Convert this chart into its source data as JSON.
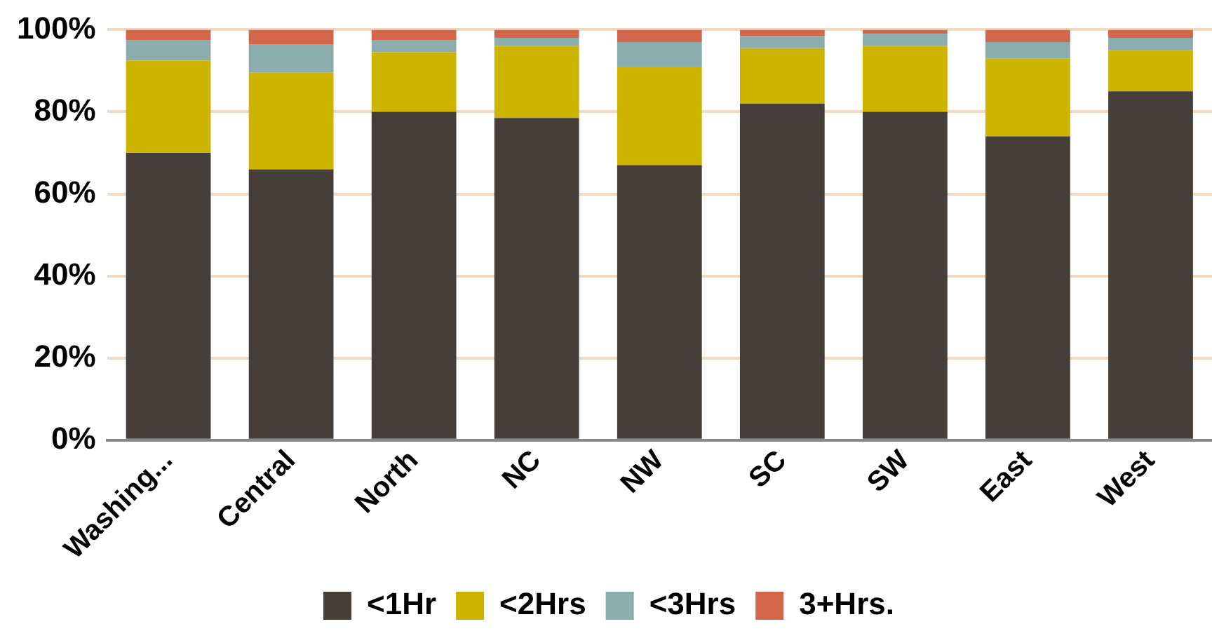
{
  "chart_data": {
    "type": "bar",
    "stacked": true,
    "categories": [
      "Washing...",
      "Central",
      "North",
      "NC",
      "NW",
      "SC",
      "SW",
      "East",
      "West"
    ],
    "series": [
      {
        "name": "<1Hr",
        "color": "#463e39",
        "values": [
          70,
          66,
          80,
          78.5,
          67,
          82,
          80,
          74,
          85
        ]
      },
      {
        "name": "<2Hrs",
        "color": "#cdb400",
        "values": [
          22.5,
          23.5,
          14.5,
          17.5,
          24,
          13.5,
          16,
          19,
          10
        ]
      },
      {
        "name": "<3Hrs",
        "color": "#8cadad",
        "values": [
          5,
          7,
          3,
          2,
          6,
          3,
          3,
          4,
          3
        ]
      },
      {
        "name": "3+Hrs.",
        "color": "#d4664b",
        "values": [
          2.5,
          3.5,
          2.5,
          2,
          3,
          1.5,
          1,
          3,
          2
        ]
      }
    ],
    "ylim": [
      0,
      100
    ],
    "yticks": [
      {
        "value": 0,
        "label": "0%"
      },
      {
        "value": 20,
        "label": "20%"
      },
      {
        "value": 40,
        "label": "40%"
      },
      {
        "value": 60,
        "label": "60%"
      },
      {
        "value": 80,
        "label": "80%"
      },
      {
        "value": 100,
        "label": "100%"
      }
    ],
    "grid": "y",
    "legend": "bottom"
  }
}
